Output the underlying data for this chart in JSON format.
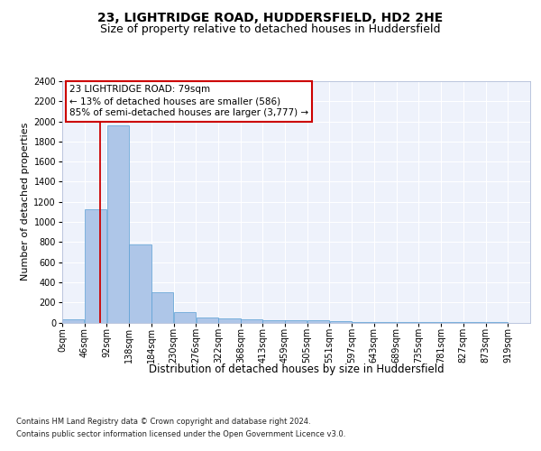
{
  "title": "23, LIGHTRIDGE ROAD, HUDDERSFIELD, HD2 2HE",
  "subtitle": "Size of property relative to detached houses in Huddersfield",
  "xlabel": "Distribution of detached houses by size in Huddersfield",
  "ylabel": "Number of detached properties",
  "bin_edges": [
    0,
    46,
    92,
    138,
    184,
    230,
    276,
    322,
    368,
    413,
    459,
    505,
    551,
    597,
    643,
    689,
    735,
    781,
    827,
    873,
    919
  ],
  "bar_heights": [
    35,
    1130,
    1960,
    780,
    300,
    100,
    45,
    40,
    35,
    25,
    20,
    25,
    15,
    5,
    5,
    3,
    2,
    2,
    2,
    2
  ],
  "bar_color": "#aec6e8",
  "bar_edge_color": "#5a9fd4",
  "property_size": 79,
  "property_line_color": "#cc0000",
  "ylim": [
    0,
    2400
  ],
  "yticks": [
    0,
    200,
    400,
    600,
    800,
    1000,
    1200,
    1400,
    1600,
    1800,
    2000,
    2200,
    2400
  ],
  "annotation_text": "23 LIGHTRIDGE ROAD: 79sqm\n← 13% of detached houses are smaller (586)\n85% of semi-detached houses are larger (3,777) →",
  "annotation_box_color": "#cc0000",
  "footer_line1": "Contains HM Land Registry data © Crown copyright and database right 2024.",
  "footer_line2": "Contains public sector information licensed under the Open Government Licence v3.0.",
  "background_color": "#eef2fb",
  "grid_color": "#ffffff",
  "title_fontsize": 10,
  "subtitle_fontsize": 9,
  "ylabel_fontsize": 8,
  "xlabel_fontsize": 8.5,
  "tick_fontsize": 7,
  "annotation_fontsize": 7.5,
  "footer_fontsize": 6,
  "tick_labels": [
    "0sqm",
    "46sqm",
    "92sqm",
    "138sqm",
    "184sqm",
    "230sqm",
    "276sqm",
    "322sqm",
    "368sqm",
    "413sqm",
    "459sqm",
    "505sqm",
    "551sqm",
    "597sqm",
    "643sqm",
    "689sqm",
    "735sqm",
    "781sqm",
    "827sqm",
    "873sqm",
    "919sqm"
  ],
  "xlim_max": 965
}
